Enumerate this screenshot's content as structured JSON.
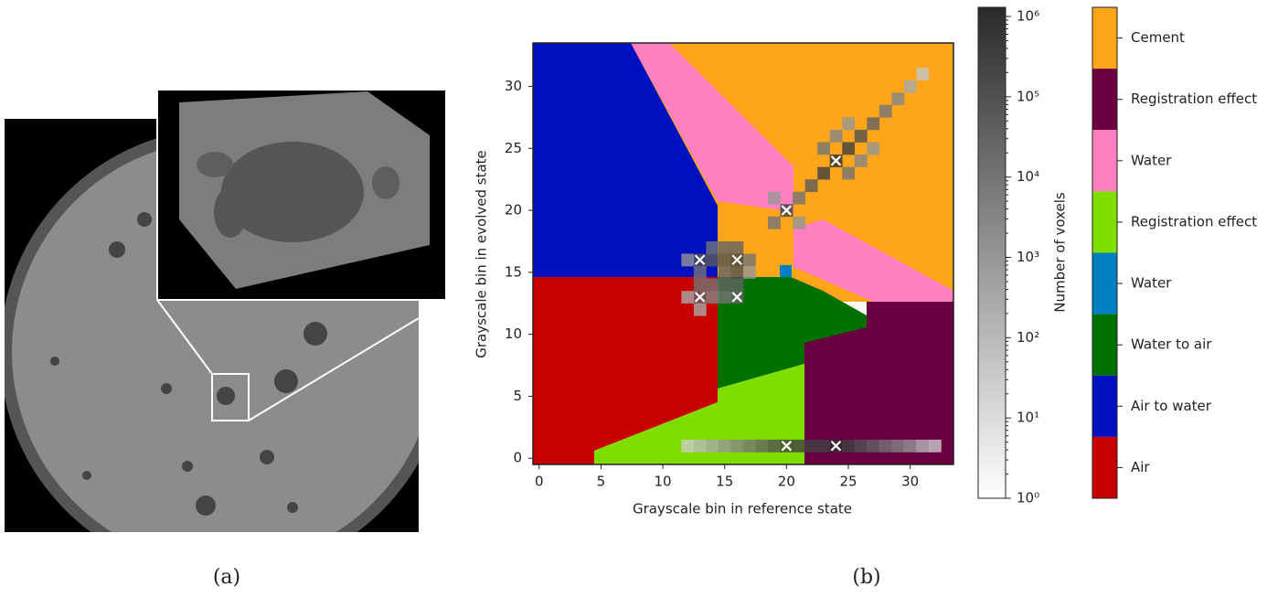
{
  "captions": [
    "(a)",
    "(b)"
  ],
  "chart_data": {
    "type": "heatmap",
    "x_label": "Grayscale bin in reference state",
    "y_label": "Grayscale bin in evolved state",
    "xlim": [
      -0.5,
      33.5
    ],
    "ylim": [
      -0.5,
      33.5
    ],
    "xticks": [
      0,
      5,
      10,
      15,
      20,
      25,
      30
    ],
    "yticks": [
      0,
      5,
      10,
      15,
      20,
      25,
      30
    ],
    "cells": {
      "x": [
        24,
        23,
        25,
        22,
        26,
        27,
        28,
        29,
        30,
        31,
        21,
        20,
        19,
        21,
        19,
        25,
        23,
        26,
        24,
        27,
        25,
        13,
        16,
        13,
        16,
        14,
        15,
        12,
        14,
        15,
        16,
        16,
        15,
        13,
        14,
        15,
        16,
        13,
        12,
        13,
        14,
        15,
        17,
        17,
        12,
        13,
        14,
        15,
        16,
        17,
        18,
        19,
        20,
        21,
        22,
        23,
        24,
        25,
        26,
        27,
        28,
        29,
        30,
        31,
        32
      ],
      "y": [
        24,
        23,
        25,
        22,
        26,
        27,
        28,
        29,
        30,
        31,
        21,
        20,
        19,
        19,
        21,
        23,
        25,
        24,
        26,
        25,
        27,
        16,
        16,
        13,
        13,
        16,
        16,
        16,
        17,
        17,
        17,
        15,
        15,
        15,
        14,
        14,
        14,
        14,
        13,
        12,
        13,
        13,
        16,
        15,
        1,
        1,
        1,
        1,
        1,
        1,
        1,
        1,
        1,
        1,
        1,
        1,
        1,
        1,
        1,
        1,
        1,
        1,
        1,
        1,
        1
      ],
      "values": [
        1000000,
        300000,
        300000,
        50000,
        100000,
        30000,
        10000,
        3000,
        300,
        50,
        10000,
        300000,
        10000,
        1000,
        1000,
        10000,
        10000,
        3000,
        3000,
        1000,
        1000,
        100000,
        300000,
        30000,
        30000,
        50000,
        100000,
        1000,
        10000,
        30000,
        30000,
        100000,
        30000,
        10000,
        10000,
        30000,
        30000,
        10000,
        300,
        300,
        3000,
        10000,
        10000,
        1000,
        30,
        100,
        300,
        1000,
        3000,
        10000,
        30000,
        100000,
        300000,
        300000,
        300000,
        300000,
        1000000,
        300000,
        100000,
        30000,
        10000,
        3000,
        1000,
        100,
        30
      ]
    },
    "markers": {
      "x": [
        13,
        16,
        13,
        16,
        20,
        24,
        20,
        24
      ],
      "y": [
        16,
        16,
        13,
        13,
        20,
        24,
        1,
        1
      ]
    },
    "colorbar": {
      "label": "Number of voxels",
      "log_scale": true,
      "ylim": [
        1,
        1300000
      ],
      "yticks": [
        {
          "value": 1,
          "label": "10⁰"
        },
        {
          "value": 10,
          "label": "10¹"
        },
        {
          "value": 100,
          "label": "10²"
        },
        {
          "value": 1000,
          "label": "10³"
        },
        {
          "value": 10000,
          "label": "10⁴"
        },
        {
          "value": 100000,
          "label": "10⁵"
        },
        {
          "value": 1000000,
          "label": "10⁶"
        }
      ]
    },
    "regions": [
      {
        "name": "Cement",
        "color": "#ffa51a"
      },
      {
        "name": "Registration effect",
        "color": "#6a0040"
      },
      {
        "name": "Water",
        "color": "#ff80c0"
      },
      {
        "name": "Registration effect",
        "color": "#80dd00"
      },
      {
        "name": "Water",
        "color": "#0080c0"
      },
      {
        "name": "Water to air",
        "color": "#007000"
      },
      {
        "name": "Air to water",
        "color": "#0010c0"
      },
      {
        "name": "Air",
        "color": "#c80000"
      }
    ]
  }
}
